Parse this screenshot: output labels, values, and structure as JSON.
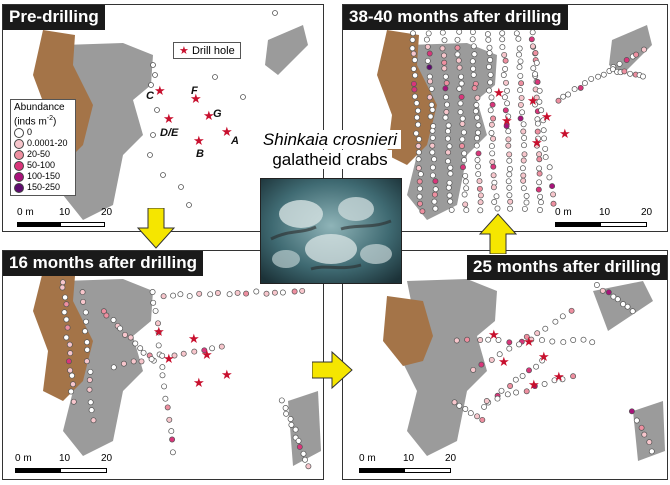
{
  "panels": {
    "p1": {
      "title": "Pre-drilling"
    },
    "p2": {
      "title": "38-40 months after drilling"
    },
    "p3": {
      "title": "16 months after drilling"
    },
    "p4": {
      "title": "25 months after drilling"
    }
  },
  "scale_bar": {
    "labels": [
      "0 m",
      "10",
      "20"
    ]
  },
  "legend": {
    "title_line1": "Abundance",
    "title_line2": "(inds m",
    "title_sup": "-2",
    "title_end": ")",
    "items": [
      {
        "label": "0",
        "color": "#ffffff"
      },
      {
        "label": "0.0001-20",
        "color": "#f7c6cc"
      },
      {
        "label": "20-50",
        "color": "#ee8fa0"
      },
      {
        "label": "50-100",
        "color": "#d9357a"
      },
      {
        "label": "100-150",
        "color": "#a8127a"
      },
      {
        "label": "150-250",
        "color": "#5e0b6e"
      }
    ]
  },
  "drill_hole_legend": {
    "symbol": "★",
    "label": "Drill hole"
  },
  "wells": [
    "C",
    "F",
    "G",
    "D/E",
    "A",
    "B"
  ],
  "species": {
    "line1": "Shinkaia crosnieri",
    "line2": "galatheid crabs"
  },
  "colors": {
    "gray_area": "#9b9b9b",
    "brown_area": "#a47448",
    "star": "#c8102e",
    "arrow": "#f5e600"
  }
}
